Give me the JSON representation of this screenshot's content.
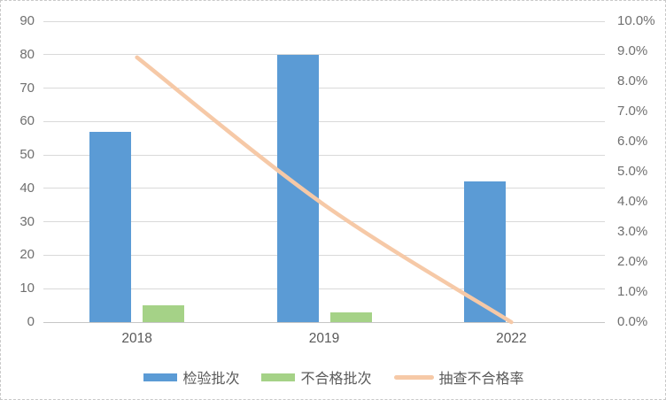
{
  "chart_data": {
    "type": "bar",
    "combo": "clustered bars with secondary-axis smoothed line",
    "title": "",
    "categories": [
      "2018",
      "2019",
      "2022"
    ],
    "series": [
      {
        "name": "检验批次",
        "type": "bar",
        "axis": "left",
        "color": "#5B9BD5",
        "values": [
          57,
          80,
          42
        ]
      },
      {
        "name": "不合格批次",
        "type": "bar",
        "axis": "left",
        "color": "#A5D287",
        "values": [
          5,
          3,
          0
        ]
      },
      {
        "name": "抽查不合格率",
        "type": "line",
        "axis": "right",
        "color": "#F6C9A7",
        "values": [
          8.8,
          3.9,
          0.0
        ],
        "unit": "%"
      }
    ],
    "left_axis": {
      "min": 0,
      "max": 90,
      "step": 10,
      "labels": [
        "0",
        "10",
        "20",
        "30",
        "40",
        "50",
        "60",
        "70",
        "80",
        "90"
      ]
    },
    "right_axis": {
      "min": 0.0,
      "max": 10.0,
      "step": 1.0,
      "labels": [
        "0.0%",
        "1.0%",
        "2.0%",
        "3.0%",
        "4.0%",
        "5.0%",
        "6.0%",
        "7.0%",
        "8.0%",
        "9.0%",
        "10.0%"
      ]
    },
    "grid": true,
    "legend_position": "bottom"
  },
  "colors": {
    "bar_blue": "#5B9BD5",
    "bar_green": "#A5D287",
    "line_orange": "#F6C9A7",
    "gridline": "#D9D9D9",
    "axis_baseline": "#C6C6C6",
    "tick_text": "#6F6F6F",
    "label_text": "#595959",
    "border": "#C9C9C9"
  }
}
